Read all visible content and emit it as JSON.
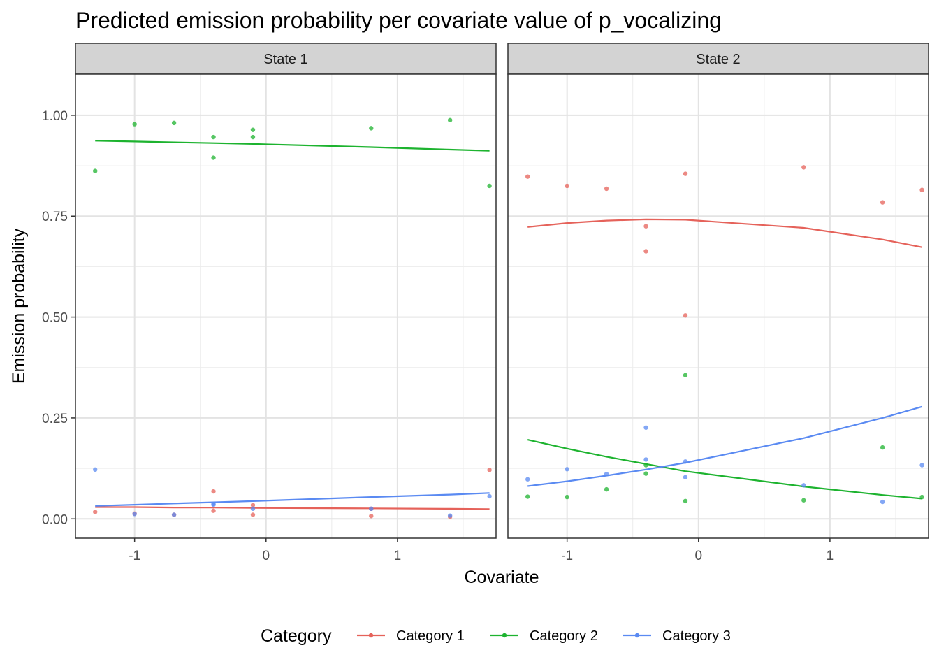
{
  "chart_data": {
    "type": "line",
    "title": "Predicted emission probability per covariate value of p_vocalizing",
    "xlabel": "Covariate",
    "ylabel": "Emission probability",
    "xlim": [
      -1.45,
      1.75
    ],
    "ylim": [
      -0.048,
      1.102
    ],
    "x_ticks": [
      -1,
      0,
      1
    ],
    "x_tick_labels": [
      "-1",
      "0",
      "1"
    ],
    "y_ticks": [
      0,
      0.25,
      0.5,
      0.75,
      1.0
    ],
    "y_tick_labels": [
      "0.00",
      "0.25",
      "0.50",
      "0.75",
      "1.00"
    ],
    "grid": true,
    "legend_title": "Category",
    "legend_position": "bottom",
    "series_names": [
      "Category 1",
      "Category 2",
      "Category 3"
    ],
    "colors": {
      "Category 1": "#E5625A",
      "Category 2": "#1DB32F",
      "Category 3": "#5A8AF2"
    },
    "panels": [
      {
        "strip": "State 1",
        "lines": [
          {
            "name": "Category 1",
            "x": [
              -1.3,
              -1.0,
              -0.7,
              -0.4,
              -0.1,
              0.8,
              1.4,
              1.7
            ],
            "y": [
              0.029,
              0.029,
              0.028,
              0.028,
              0.027,
              0.026,
              0.025,
              0.024
            ]
          },
          {
            "name": "Category 2",
            "x": [
              -1.3,
              -1.0,
              -0.7,
              -0.4,
              -0.1,
              0.8,
              1.4,
              1.7
            ],
            "y": [
              0.937,
              0.935,
              0.933,
              0.931,
              0.929,
              0.921,
              0.915,
              0.912
            ]
          },
          {
            "name": "Category 3",
            "x": [
              -1.3,
              -1.0,
              -0.7,
              -0.4,
              -0.1,
              0.8,
              1.4,
              1.7
            ],
            "y": [
              0.032,
              0.035,
              0.038,
              0.041,
              0.044,
              0.054,
              0.06,
              0.064
            ]
          }
        ],
        "points": [
          {
            "name": "Category 1",
            "x": [
              -1.3,
              -1.0,
              -0.7,
              -0.4,
              -0.4,
              -0.1,
              -0.1,
              0.8,
              0.8,
              1.4,
              1.7
            ],
            "y": [
              0.017,
              0.013,
              0.01,
              0.068,
              0.02,
              0.034,
              0.01,
              0.025,
              0.007,
              0.005,
              0.121
            ]
          },
          {
            "name": "Category 2",
            "x": [
              -1.3,
              -1.0,
              -0.7,
              -0.4,
              -0.4,
              -0.1,
              -0.1,
              0.8,
              1.4,
              1.7
            ],
            "y": [
              0.862,
              0.978,
              0.981,
              0.946,
              0.895,
              0.964,
              0.946,
              0.968,
              0.988,
              0.825
            ]
          },
          {
            "name": "Category 3",
            "x": [
              -1.3,
              -1.0,
              -0.7,
              -0.4,
              -0.4,
              -0.1,
              0.8,
              1.4,
              1.7
            ],
            "y": [
              0.122,
              0.012,
              0.01,
              0.037,
              0.035,
              0.025,
              0.025,
              0.008,
              0.056
            ]
          }
        ]
      },
      {
        "strip": "State 2",
        "lines": [
          {
            "name": "Category 1",
            "x": [
              -1.3,
              -1.0,
              -0.7,
              -0.4,
              -0.1,
              0.8,
              1.4,
              1.7
            ],
            "y": [
              0.723,
              0.733,
              0.739,
              0.742,
              0.741,
              0.721,
              0.692,
              0.673
            ]
          },
          {
            "name": "Category 2",
            "x": [
              -1.3,
              -1.0,
              -0.7,
              -0.4,
              -0.1,
              0.8,
              1.4,
              1.7
            ],
            "y": [
              0.196,
              0.174,
              0.154,
              0.136,
              0.118,
              0.08,
              0.059,
              0.05
            ]
          },
          {
            "name": "Category 3",
            "x": [
              -1.3,
              -1.0,
              -0.7,
              -0.4,
              -0.1,
              0.8,
              1.4,
              1.7
            ],
            "y": [
              0.081,
              0.093,
              0.107,
              0.122,
              0.139,
              0.2,
              0.25,
              0.278
            ]
          }
        ],
        "points": [
          {
            "name": "Category 1",
            "x": [
              -1.3,
              -1.0,
              -0.7,
              -0.4,
              -0.4,
              -0.1,
              -0.1,
              0.8,
              1.4,
              1.7
            ],
            "y": [
              0.848,
              0.825,
              0.818,
              0.725,
              0.663,
              0.855,
              0.504,
              0.871,
              0.784,
              0.815
            ]
          },
          {
            "name": "Category 2",
            "x": [
              -1.3,
              -1.0,
              -0.7,
              -0.4,
              -0.4,
              -0.1,
              -0.1,
              0.8,
              1.4,
              1.7
            ],
            "y": [
              0.055,
              0.054,
              0.073,
              0.133,
              0.112,
              0.356,
              0.044,
              0.046,
              0.177,
              0.054
            ]
          },
          {
            "name": "Category 3",
            "x": [
              -1.3,
              -1.0,
              -0.7,
              -0.4,
              -0.4,
              -0.1,
              -0.1,
              0.8,
              1.4,
              1.7
            ],
            "y": [
              0.098,
              0.123,
              0.111,
              0.226,
              0.147,
              0.142,
              0.103,
              0.083,
              0.042,
              0.133
            ]
          }
        ]
      }
    ]
  }
}
